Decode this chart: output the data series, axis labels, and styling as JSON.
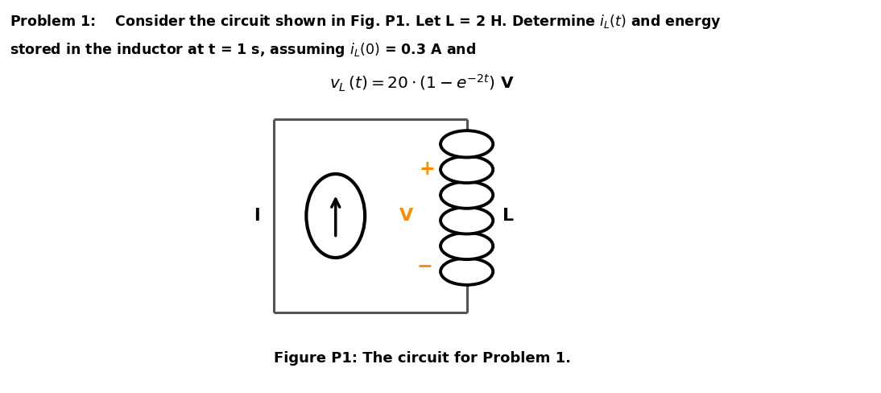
{
  "bg_color": "#ffffff",
  "text_color": "#000000",
  "orange_color": "#FF8C00",
  "box_color": "#555555",
  "coil_color": "#000000",
  "source_color": "#000000",
  "line1": "Problem 1:    Consider the circuit shown in Fig. P1. Let L = 2 H. Determine $\\mathit{i_L}(t)$ and energy",
  "line2": "stored in the inductor at t = 1 s, assuming $\\mathit{i_L}(0)$ = 0.3 A and",
  "equation": "$v_L\\,(t)=20\\cdot\\left(1-e^{-2t}\\right)$V",
  "caption": "Figure P1: The circuit for Problem 1.",
  "fig_w": 10.94,
  "fig_h": 4.88,
  "dpi": 100
}
